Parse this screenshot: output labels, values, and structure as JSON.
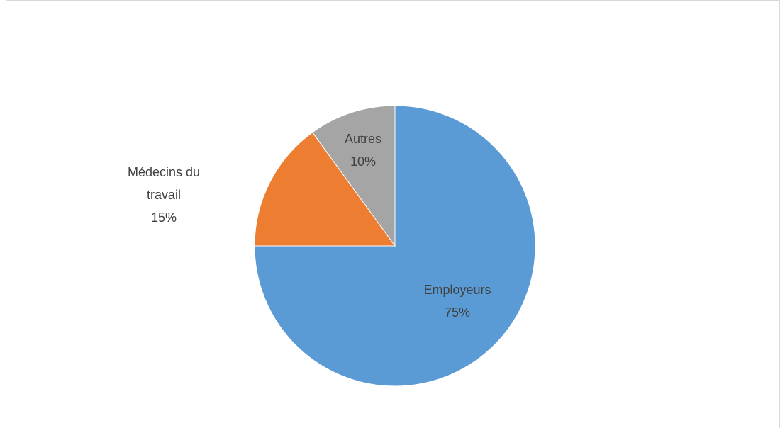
{
  "chart_data": {
    "type": "pie",
    "categories": [
      "Employeurs",
      "Médecins du travail",
      "Autres"
    ],
    "values": [
      75,
      15,
      10
    ],
    "value_labels": [
      "75%",
      "15%",
      "10%"
    ],
    "colors": [
      "#5b9bd5",
      "#ed7d31",
      "#a5a5a5"
    ]
  }
}
